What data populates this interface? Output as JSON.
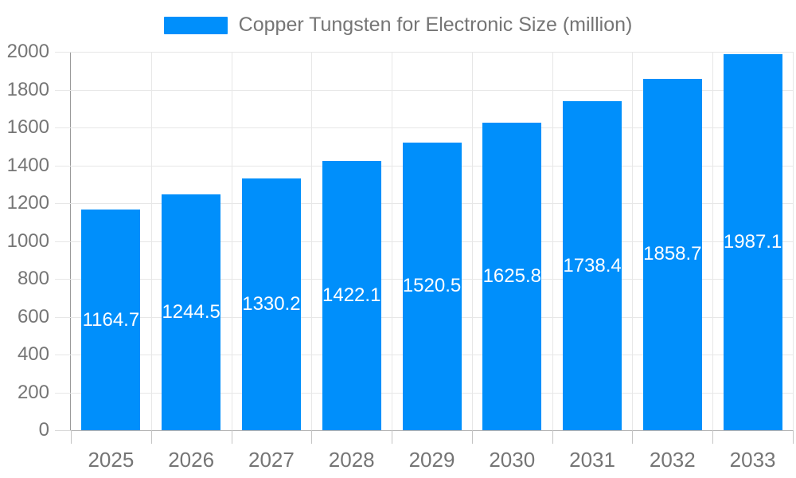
{
  "legend": {
    "label": "Copper Tungsten for Electronic Size (million)"
  },
  "chart_data": {
    "type": "bar",
    "title": "Copper Tungsten for Electronic Size (million)",
    "categories": [
      "2025",
      "2026",
      "2027",
      "2028",
      "2029",
      "2030",
      "2031",
      "2032",
      "2033"
    ],
    "values": [
      1164.7,
      1244.5,
      1330.2,
      1422.1,
      1520.5,
      1625.8,
      1738.4,
      1858.7,
      1987.1
    ],
    "value_labels": [
      "1164.7",
      "1244.5",
      "1330.2",
      "1422.1",
      "1520.5",
      "1625.8",
      "1738.4",
      "1858.7",
      "1987.1"
    ],
    "xlabel": "",
    "ylabel": "",
    "ylim": [
      0,
      2000
    ],
    "ytick_step": 200,
    "ytick_labels": [
      "0",
      "200",
      "400",
      "600",
      "800",
      "1000",
      "1200",
      "1400",
      "1600",
      "1800",
      "2000"
    ],
    "grid": true,
    "legend_position": "top-center",
    "colors": {
      "bar": "#008FFB",
      "value_label_text": "#ffffff",
      "axis_text": "#757575",
      "gridline": "#e7e7e7",
      "y_axis_line": "#9a9a9a",
      "x_axis_line": "#b3b3b3"
    }
  }
}
